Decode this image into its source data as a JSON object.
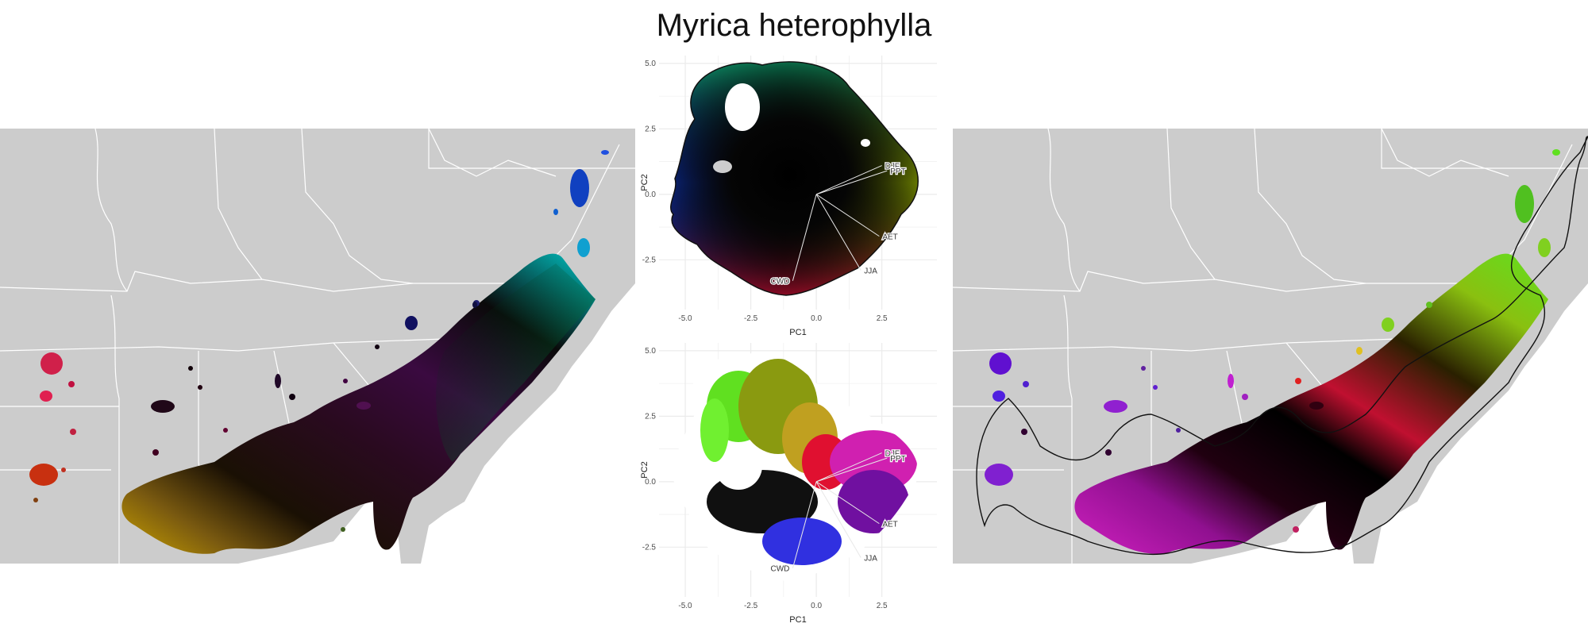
{
  "title": "Myrica heterophylla",
  "colors": {
    "land": "#cccccc",
    "borders": "#ffffff",
    "grid": "#ebebeb",
    "text": "#4d4d4d"
  },
  "chart_data": [
    {
      "type": "scatter",
      "panel": "pca-top",
      "xlabel": "PC1",
      "ylabel": "PC2",
      "xlim": [
        -6,
        4.6
      ],
      "ylim": [
        -4.4,
        5.3
      ],
      "xticks": [
        -5.0,
        -2.5,
        0.0,
        2.5
      ],
      "yticks": [
        -2.5,
        0.0,
        2.5,
        5.0
      ],
      "xtick_labels": [
        "-5.0",
        "-2.5",
        "0.0",
        "2.5"
      ],
      "ytick_labels": [
        "-2.5",
        "0.0",
        "2.5",
        "5.0"
      ],
      "grid": true,
      "loadings": [
        {
          "label": "DJF",
          "x": 2.5,
          "y": 1.1
        },
        {
          "label": "PPT",
          "x": 2.7,
          "y": 0.9
        },
        {
          "label": "AET",
          "x": 2.4,
          "y": -1.6
        },
        {
          "label": "JJA",
          "x": 1.7,
          "y": -2.9
        },
        {
          "label": "CWD",
          "x": -0.9,
          "y": -3.3
        }
      ],
      "coloring": "position-based continuous color field (hue by angle, black at center)"
    },
    {
      "type": "scatter",
      "panel": "pca-bottom",
      "xlabel": "PC1",
      "ylabel": "PC2",
      "xlim": [
        -6,
        4.6
      ],
      "ylim": [
        -4.4,
        5.3
      ],
      "xticks": [
        -5.0,
        -2.5,
        0.0,
        2.5
      ],
      "yticks": [
        -2.5,
        0.0,
        2.5,
        5.0
      ],
      "xtick_labels": [
        "-5.0",
        "-2.5",
        "0.0",
        "2.5"
      ],
      "ytick_labels": [
        "-2.5",
        "0.0",
        "2.5",
        "5.0"
      ],
      "grid": true,
      "loadings": [
        {
          "label": "DJF",
          "x": 2.5,
          "y": 1.1
        },
        {
          "label": "PPT",
          "x": 2.7,
          "y": 0.9
        },
        {
          "label": "AET",
          "x": 2.4,
          "y": -1.6
        },
        {
          "label": "JJA",
          "x": 1.7,
          "y": -2.9
        },
        {
          "label": "CWD",
          "x": -0.9,
          "y": -3.3
        }
      ],
      "coloring": "cluster-based colors (green, olive, red, magenta, purple, blue, black)"
    }
  ]
}
